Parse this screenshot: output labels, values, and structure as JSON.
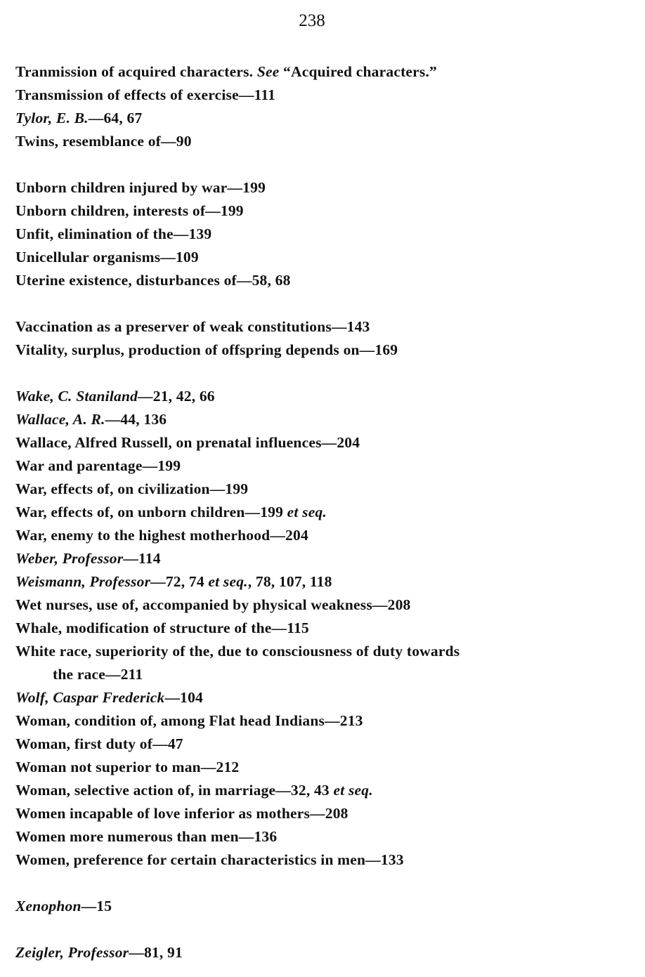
{
  "page_number": "238",
  "entries": [
    [
      {
        "t": "Tranmission of acquired characters.  "
      },
      {
        "t": "See",
        "i": true
      },
      {
        "t": " “Acquired characters.”"
      }
    ],
    [
      {
        "t": "Transmission of effects of exercise—111"
      }
    ],
    [
      {
        "t": "Tylor, E. B.",
        "i": true
      },
      {
        "t": "—64, 67"
      }
    ],
    [
      {
        "t": "Twins, resemblance of—90"
      }
    ],
    null,
    [
      {
        "t": "Unborn children injured by war—199"
      }
    ],
    [
      {
        "t": "Unborn children, interests of—199"
      }
    ],
    [
      {
        "t": "Unfit, elimination of the—139"
      }
    ],
    [
      {
        "t": "Unicellular organisms—109"
      }
    ],
    [
      {
        "t": "Uterine existence, disturbances of—58, 68"
      }
    ],
    null,
    [
      {
        "t": "Vaccination as a preserver of weak constitutions—143"
      }
    ],
    [
      {
        "t": "Vitality, surplus, production of offspring depends on—169"
      }
    ],
    null,
    [
      {
        "t": "Wake, C. Staniland",
        "i": true
      },
      {
        "t": "—21, 42, 66"
      }
    ],
    [
      {
        "t": "Wallace, A. R.",
        "i": true
      },
      {
        "t": "—44, 136"
      }
    ],
    [
      {
        "t": "Wallace, Alfred Russell, on prenatal influences—204"
      }
    ],
    [
      {
        "t": "War and parentage—199"
      }
    ],
    [
      {
        "t": "War, effects of, on civilization—199"
      }
    ],
    [
      {
        "t": "War, effects of, on unborn children—199 "
      },
      {
        "t": "et seq.",
        "i": true
      }
    ],
    [
      {
        "t": "War, enemy to the highest motherhood—204"
      }
    ],
    [
      {
        "t": "Weber, Professor",
        "i": true
      },
      {
        "t": "—114"
      }
    ],
    [
      {
        "t": "Weismann, Professor",
        "i": true
      },
      {
        "t": "—72, 74 "
      },
      {
        "t": "et seq.",
        "i": true
      },
      {
        "t": ", 78, 107, 118"
      }
    ],
    [
      {
        "t": "Wet nurses, use of, accompanied by physical weakness—208"
      }
    ],
    [
      {
        "t": "Whale, modification of structure of the—115"
      }
    ],
    [
      {
        "t": "White race, superiority of the, due to consciousness of  duty towards"
      }
    ],
    "cont",
    [
      {
        "t": "Wolf, Caspar Frederick",
        "i": true
      },
      {
        "t": "—104"
      }
    ],
    [
      {
        "t": "Woman, condition of, among Flat head Indians—213"
      }
    ],
    [
      {
        "t": "Woman, first duty of—47"
      }
    ],
    [
      {
        "t": "Woman not superior to man—212"
      }
    ],
    [
      {
        "t": "Woman, selective action of, in marriage—32, 43 "
      },
      {
        "t": "et seq.",
        "i": true
      }
    ],
    [
      {
        "t": "Women incapable of love inferior as mothers—208"
      }
    ],
    [
      {
        "t": "Women more numerous than men—136"
      }
    ],
    [
      {
        "t": "Women, preference for certain characteristics in men—133"
      }
    ],
    null,
    [
      {
        "t": "Xenophon",
        "i": true
      },
      {
        "t": "—15"
      }
    ],
    null,
    [
      {
        "t": "Zeigler, Professor",
        "i": true
      },
      {
        "t": "—81, 91"
      }
    ]
  ],
  "continuation": "the race—211"
}
